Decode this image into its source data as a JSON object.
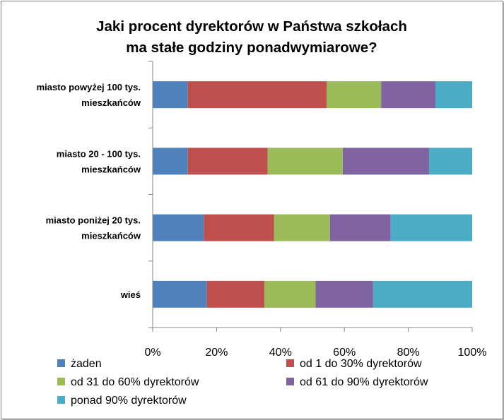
{
  "chart_data": {
    "type": "bar",
    "orientation": "horizontal",
    "stacked": "percent",
    "title_lines": [
      "Jaki procent dyrektorów w Państwa szkołach",
      "ma stałe godziny ponadwymiarowe?"
    ],
    "categories": [
      [
        "miasto powyżej 100 tys.",
        "mieszkańców"
      ],
      [
        "miasto 20 - 100 tys.",
        "mieszkańców"
      ],
      [
        "miasto poniżej 20 tys.",
        "mieszkańców"
      ],
      [
        "wieś"
      ]
    ],
    "series": [
      {
        "name": "żaden",
        "color": "#4f81bd",
        "values": [
          11,
          11,
          16,
          17
        ]
      },
      {
        "name": "od 1 do 30% dyrektorów",
        "color": "#c0504d",
        "values": [
          43.5,
          25,
          22,
          18
        ]
      },
      {
        "name": "od 31 do 60% dyrektorów",
        "color": "#9bbb59",
        "values": [
          17,
          23.5,
          17.5,
          16
        ]
      },
      {
        "name": "od 61 do 90% dyrektorów",
        "color": "#8064a2",
        "values": [
          17,
          27,
          19,
          18
        ]
      },
      {
        "name": "ponad 90% dyrektorów",
        "color": "#4bacc6",
        "values": [
          11.5,
          13.5,
          25.5,
          31
        ]
      }
    ],
    "x_ticks": [
      "0%",
      "20%",
      "40%",
      "60%",
      "80%",
      "100%"
    ],
    "xlim": [
      0,
      100
    ],
    "grid": false,
    "legend_position": "bottom"
  }
}
